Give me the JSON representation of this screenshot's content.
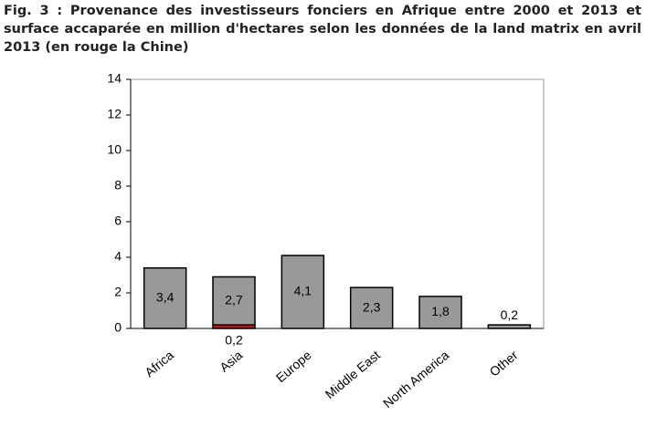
{
  "chart_data": {
    "type": "bar",
    "stacked": true,
    "title": "Fig. 3 : Provenance des investisseurs fonciers en Afrique entre 2000 et 2013 et surface accaparée en million d'hectares selon les données de la land matrix en avril 2013 (en rouge la Chine)",
    "categories": [
      "Africa",
      "Asia",
      "Europe",
      "Middle East",
      "North America",
      "Other"
    ],
    "series": [
      {
        "color": "#cc1111",
        "values": [
          null,
          0.2,
          null,
          null,
          null,
          null
        ],
        "value_labels": [
          null,
          "0,2",
          null,
          null,
          null,
          null
        ]
      },
      {
        "color": "#999999",
        "values": [
          3.4,
          2.7,
          4.1,
          2.3,
          1.8,
          0.2
        ],
        "value_labels": [
          "3,4",
          "2,7",
          "4,1",
          "2,3",
          "1,8",
          "0,2"
        ]
      }
    ],
    "ylim": [
      0,
      14
    ],
    "yticks": [
      0,
      2,
      4,
      6,
      8,
      10,
      12,
      14
    ],
    "grid": false
  }
}
